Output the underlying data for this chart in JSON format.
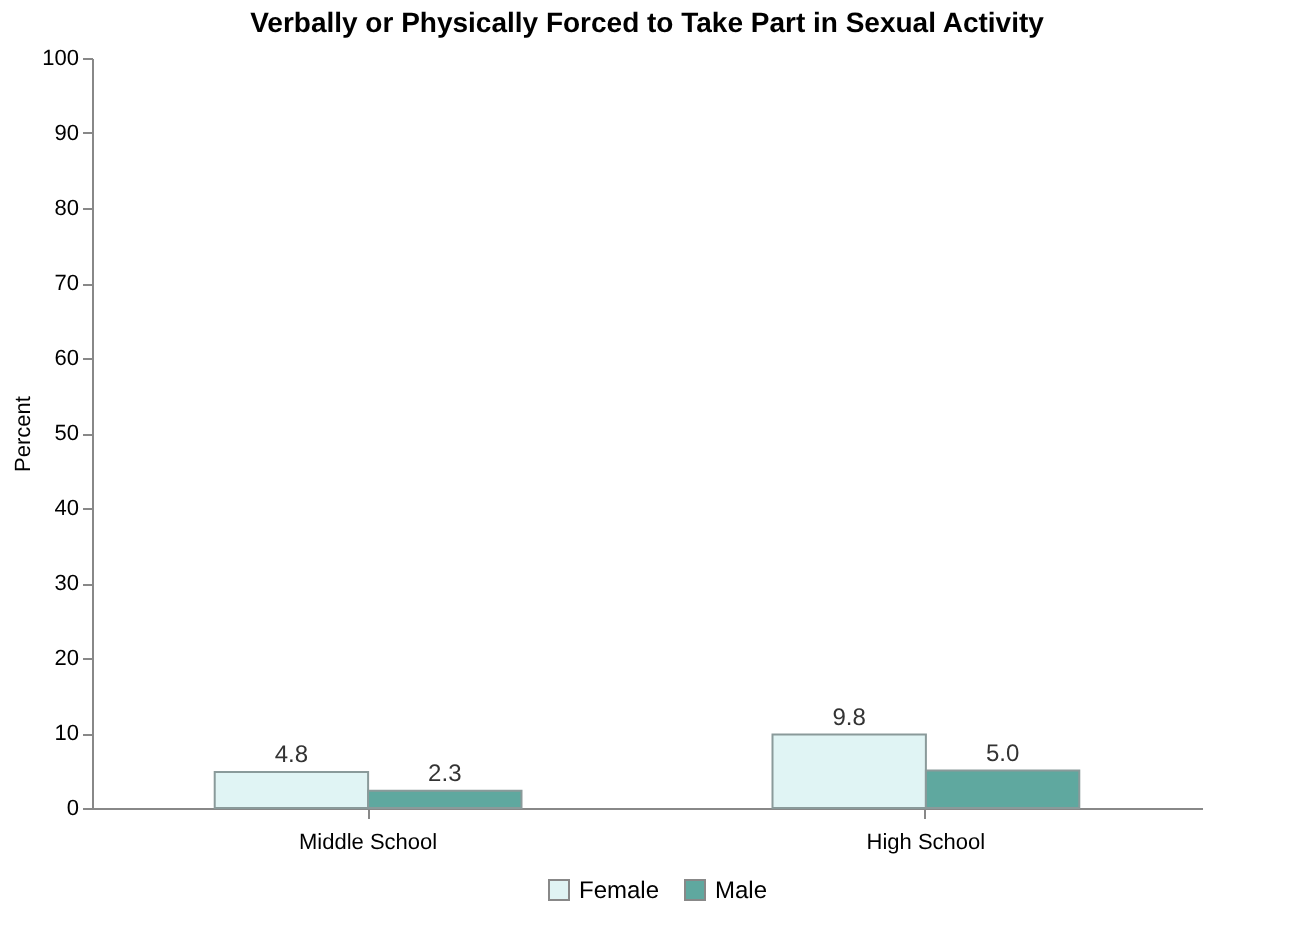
{
  "chart_data": {
    "type": "bar",
    "title": "Verbally or Physically Forced to Take Part in Sexual Activity",
    "ylabel": "Percent",
    "categories": [
      "Middle School",
      "High School"
    ],
    "series": [
      {
        "name": "Female",
        "color": "#e0f4f4",
        "values": [
          4.8,
          9.8
        ],
        "value_labels": [
          "4.8",
          "9.8"
        ]
      },
      {
        "name": "Male",
        "color": "#5fa89f",
        "values": [
          2.3,
          5.0
        ],
        "value_labels": [
          "2.3",
          "5.0"
        ]
      }
    ],
    "ylim": [
      0,
      100
    ],
    "yticks": [
      0,
      10,
      20,
      30,
      40,
      50,
      60,
      70,
      80,
      90,
      100
    ],
    "grid": false,
    "legend": "bottom"
  }
}
